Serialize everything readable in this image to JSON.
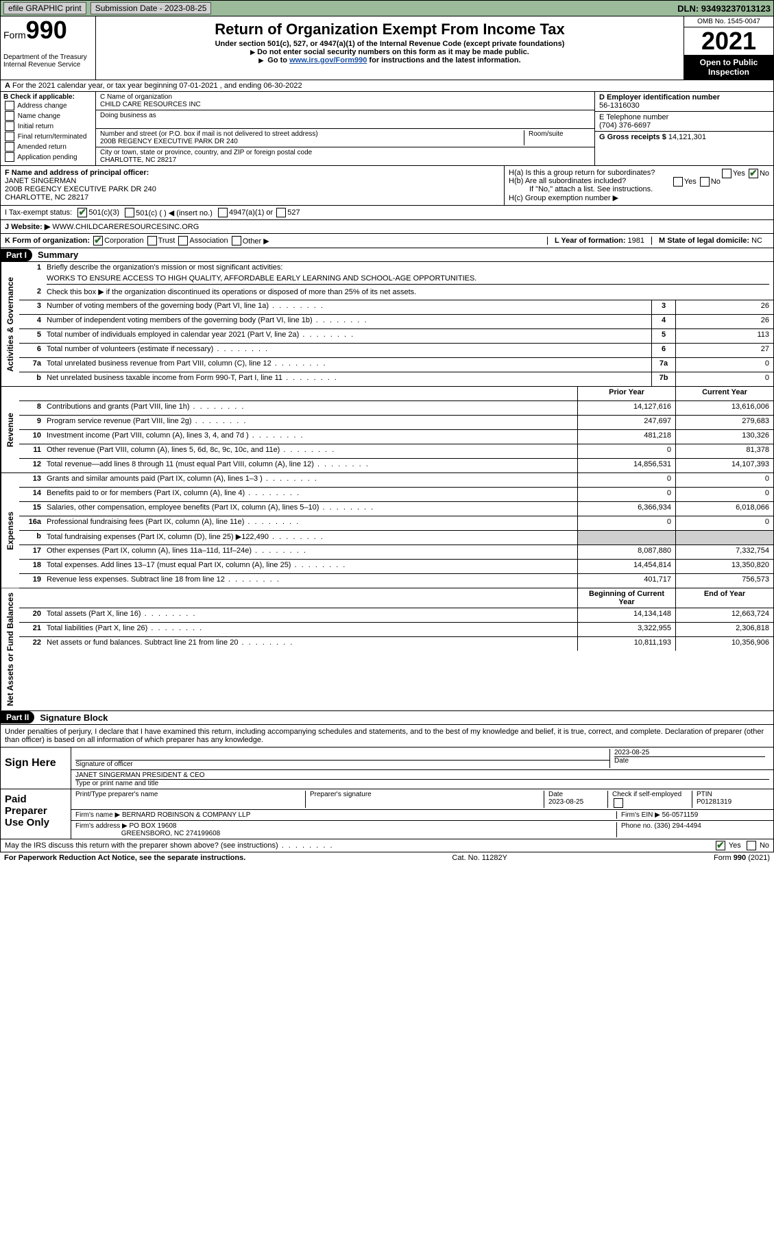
{
  "topbar": {
    "efile": "efile GRAPHIC print",
    "submission_label": "Submission Date - 2023-08-25",
    "dln": "DLN: 93493237013123"
  },
  "header": {
    "form_word": "Form",
    "form_num": "990",
    "title": "Return of Organization Exempt From Income Tax",
    "sub": "Under section 501(c), 527, or 4947(a)(1) of the Internal Revenue Code (except private foundations)",
    "line2": "Do not enter social security numbers on this form as it may be made public.",
    "line3_pre": "Go to ",
    "line3_link": "www.irs.gov/Form990",
    "line3_post": " for instructions and the latest information.",
    "dept": "Department of the Treasury\nInternal Revenue Service",
    "omb": "OMB No. 1545-0047",
    "year": "2021",
    "open": "Open to Public Inspection"
  },
  "lineA": "For the 2021 calendar year, or tax year beginning 07-01-2021    , and ending 06-30-2022",
  "boxB": {
    "label": "B Check if applicable:",
    "items": [
      "Address change",
      "Name change",
      "Initial return",
      "Final return/terminated",
      "Amended return",
      "Application pending"
    ]
  },
  "boxC": {
    "label": "C Name of organization",
    "name": "CHILD CARE RESOURCES INC",
    "dba_label": "Doing business as",
    "street_label": "Number and street (or P.O. box if mail is not delivered to street address)",
    "room_label": "Room/suite",
    "street": "200B REGENCY EXECUTIVE PARK DR 240",
    "city_label": "City or town, state or province, country, and ZIP or foreign postal code",
    "city": "CHARLOTTE, NC  28217"
  },
  "boxD": {
    "label": "D Employer identification number",
    "ein": "56-1316030"
  },
  "boxE": {
    "label": "E Telephone number",
    "phone": "(704) 376-6697"
  },
  "boxG": {
    "label": "G Gross receipts $",
    "val": "14,121,301"
  },
  "boxF": {
    "label": "F Name and address of principal officer:",
    "name": "JANET SINGERMAN",
    "addr1": "200B REGENCY EXECUTIVE PARK DR 240",
    "addr2": "CHARLOTTE, NC  28217"
  },
  "boxH": {
    "ha": "H(a)  Is this a group return for subordinates?",
    "ha_yes": "Yes",
    "ha_no": "No",
    "hb": "H(b)  Are all subordinates included?",
    "hb_yes": "Yes",
    "hb_no": "No",
    "hb_note": "If \"No,\" attach a list. See instructions.",
    "hc": "H(c)  Group exemption number ▶"
  },
  "rowI": {
    "label": "I   Tax-exempt status:",
    "o1": "501(c)(3)",
    "o2": "501(c) (  ) ◀ (insert no.)",
    "o3": "4947(a)(1) or",
    "o4": "527"
  },
  "rowJ": {
    "label": "J   Website: ▶",
    "val": "WWW.CHILDCARERESOURCESINC.ORG"
  },
  "rowK": {
    "label": "K Form of organization:",
    "o1": "Corporation",
    "o2": "Trust",
    "o3": "Association",
    "o4": "Other ▶",
    "l_label": "L Year of formation: ",
    "l_val": "1981",
    "m_label": "M State of legal domicile: ",
    "m_val": "NC"
  },
  "partI": {
    "hdr": "Part I",
    "title": "Summary",
    "q1": "Briefly describe the organization's mission or most significant activities:",
    "mission": "WORKS TO ENSURE ACCESS TO HIGH QUALITY, AFFORDABLE EARLY LEARNING AND SCHOOL-AGE OPPORTUNITIES.",
    "q2": "Check this box ▶      if the organization discontinued its operations or disposed of more than 25% of its net assets.",
    "sideA": "Activities & Governance",
    "sideR": "Revenue",
    "sideE": "Expenses",
    "sideN": "Net Assets or Fund Balances",
    "col_prior": "Prior Year",
    "col_curr": "Current Year",
    "col_beg": "Beginning of Current Year",
    "col_end": "End of Year",
    "rows_gov": [
      {
        "n": "3",
        "d": "Number of voting members of the governing body (Part VI, line 1a)",
        "box": "3",
        "v": "26"
      },
      {
        "n": "4",
        "d": "Number of independent voting members of the governing body (Part VI, line 1b)",
        "box": "4",
        "v": "26"
      },
      {
        "n": "5",
        "d": "Total number of individuals employed in calendar year 2021 (Part V, line 2a)",
        "box": "5",
        "v": "113"
      },
      {
        "n": "6",
        "d": "Total number of volunteers (estimate if necessary)",
        "box": "6",
        "v": "27"
      },
      {
        "n": "7a",
        "d": "Total unrelated business revenue from Part VIII, column (C), line 12",
        "box": "7a",
        "v": "0"
      },
      {
        "n": "b",
        "d": "Net unrelated business taxable income from Form 990-T, Part I, line 11",
        "box": "7b",
        "v": "0"
      }
    ],
    "rows_rev": [
      {
        "n": "8",
        "d": "Contributions and grants (Part VIII, line 1h)",
        "p": "14,127,616",
        "c": "13,616,006"
      },
      {
        "n": "9",
        "d": "Program service revenue (Part VIII, line 2g)",
        "p": "247,697",
        "c": "279,683"
      },
      {
        "n": "10",
        "d": "Investment income (Part VIII, column (A), lines 3, 4, and 7d )",
        "p": "481,218",
        "c": "130,326"
      },
      {
        "n": "11",
        "d": "Other revenue (Part VIII, column (A), lines 5, 6d, 8c, 9c, 10c, and 11e)",
        "p": "0",
        "c": "81,378"
      },
      {
        "n": "12",
        "d": "Total revenue—add lines 8 through 11 (must equal Part VIII, column (A), line 12)",
        "p": "14,856,531",
        "c": "14,107,393"
      }
    ],
    "rows_exp": [
      {
        "n": "13",
        "d": "Grants and similar amounts paid (Part IX, column (A), lines 1–3 )",
        "p": "0",
        "c": "0"
      },
      {
        "n": "14",
        "d": "Benefits paid to or for members (Part IX, column (A), line 4)",
        "p": "0",
        "c": "0"
      },
      {
        "n": "15",
        "d": "Salaries, other compensation, employee benefits (Part IX, column (A), lines 5–10)",
        "p": "6,366,934",
        "c": "6,018,066"
      },
      {
        "n": "16a",
        "d": "Professional fundraising fees (Part IX, column (A), line 11e)",
        "p": "0",
        "c": "0"
      },
      {
        "n": "b",
        "d": "Total fundraising expenses (Part IX, column (D), line 25) ▶122,490",
        "p": "",
        "c": "",
        "shade": true
      },
      {
        "n": "17",
        "d": "Other expenses (Part IX, column (A), lines 11a–11d, 11f–24e)",
        "p": "8,087,880",
        "c": "7,332,754"
      },
      {
        "n": "18",
        "d": "Total expenses. Add lines 13–17 (must equal Part IX, column (A), line 25)",
        "p": "14,454,814",
        "c": "13,350,820"
      },
      {
        "n": "19",
        "d": "Revenue less expenses. Subtract line 18 from line 12",
        "p": "401,717",
        "c": "756,573"
      }
    ],
    "rows_net": [
      {
        "n": "20",
        "d": "Total assets (Part X, line 16)",
        "p": "14,134,148",
        "c": "12,663,724"
      },
      {
        "n": "21",
        "d": "Total liabilities (Part X, line 26)",
        "p": "3,322,955",
        "c": "2,306,818"
      },
      {
        "n": "22",
        "d": "Net assets or fund balances. Subtract line 21 from line 20",
        "p": "10,811,193",
        "c": "10,356,906"
      }
    ]
  },
  "partII": {
    "hdr": "Part II",
    "title": "Signature Block",
    "decl": "Under penalties of perjury, I declare that I have examined this return, including accompanying schedules and statements, and to the best of my knowledge and belief, it is true, correct, and complete. Declaration of preparer (other than officer) is based on all information of which preparer has any knowledge.",
    "sign_here": "Sign Here",
    "sig_officer": "Signature of officer",
    "sig_date": "2023-08-25",
    "date_label": "Date",
    "officer_name": "JANET SINGERMAN  PRESIDENT & CEO",
    "type_name": "Type or print name and title",
    "paid": "Paid Preparer Use Only",
    "prep_name_label": "Print/Type preparer's name",
    "prep_sig_label": "Preparer's signature",
    "prep_date_label": "Date",
    "prep_date": "2023-08-25",
    "check_if": "Check        if self-employed",
    "ptin_label": "PTIN",
    "ptin": "P01281319",
    "firm_name_label": "Firm's name     ▶",
    "firm_name": "BERNARD ROBINSON & COMPANY LLP",
    "firm_ein_label": "Firm's EIN ▶",
    "firm_ein": "56-0571159",
    "firm_addr_label": "Firm's address ▶",
    "firm_addr1": "PO BOX 19608",
    "firm_addr2": "GREENSBORO, NC  274199608",
    "firm_phone_label": "Phone no.",
    "firm_phone": "(336) 294-4494",
    "may_irs": "May the IRS discuss this return with the preparer shown above? (see instructions)",
    "yes": "Yes",
    "no": "No"
  },
  "footer": {
    "left": "For Paperwork Reduction Act Notice, see the separate instructions.",
    "mid": "Cat. No. 11282Y",
    "right": "Form 990 (2021)"
  }
}
